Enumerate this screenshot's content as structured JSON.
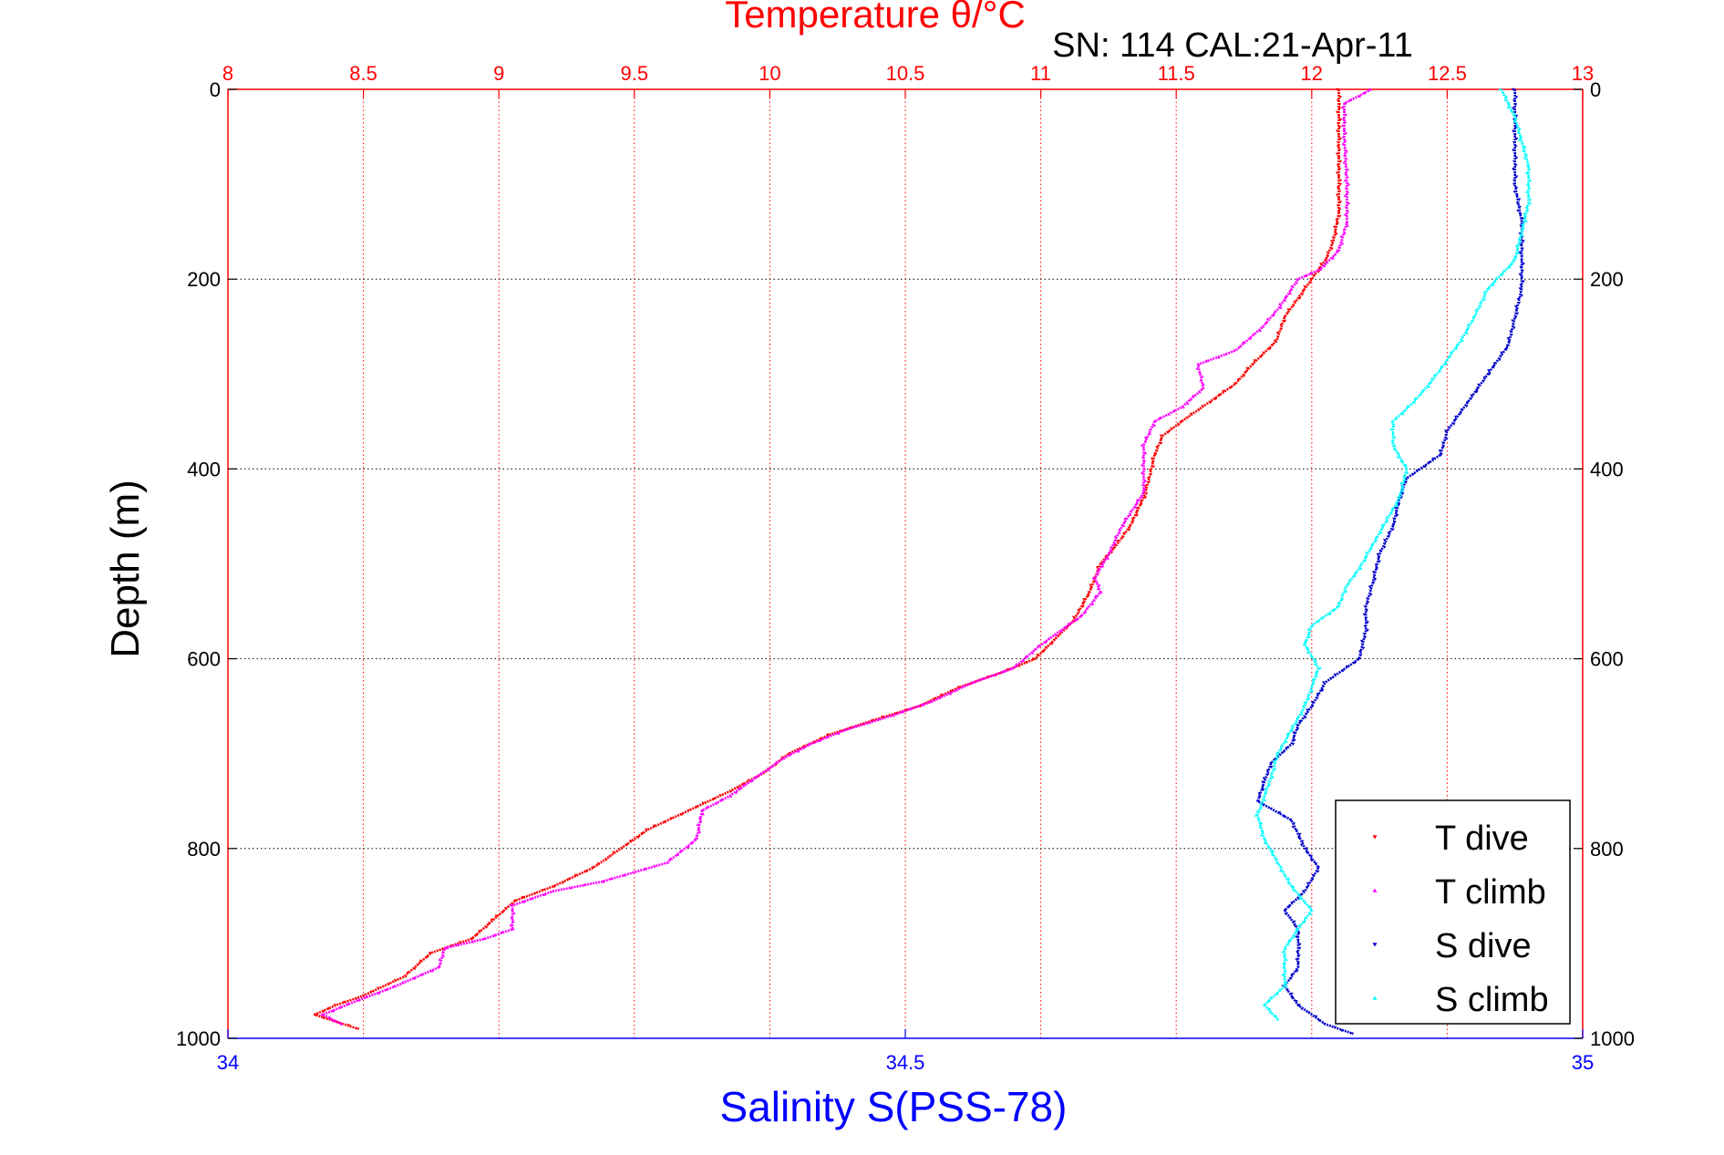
{
  "chart_data": {
    "type": "scatter",
    "title": "Temperature θ/°C",
    "subtitle": "SN: 114  CAL:21-Apr-11",
    "ylabel": "Depth (m)",
    "xlabel": "Salinity S(PSS-78)",
    "ylim": [
      0,
      1000
    ],
    "y_reversed": true,
    "x_temperature_lim": [
      8,
      13
    ],
    "x_salinity_lim": [
      34,
      35
    ],
    "temperature_ticks": [
      "8",
      "8.5",
      "9",
      "9.5",
      "10",
      "10.5",
      "11",
      "11.5",
      "12",
      "12.5",
      "13"
    ],
    "salinity_ticks": [
      "34",
      "34.5",
      "35"
    ],
    "depth_ticks": [
      "0",
      "200",
      "400",
      "600",
      "800",
      "1000"
    ],
    "grid": true,
    "legend_position": "bottom-right",
    "colors": {
      "temperature_axis": "#ff0000",
      "salinity_axis": "#0000ff",
      "grid_depth": "#000000",
      "grid_temperature": "#ff0000"
    },
    "series": [
      {
        "name": "T dive",
        "color": "#ff0000",
        "axis": "temperature",
        "marker": "down-triangle",
        "points": [
          [
            12.1,
            0
          ],
          [
            12.1,
            20
          ],
          [
            12.1,
            60
          ],
          [
            12.1,
            100
          ],
          [
            12.1,
            130
          ],
          [
            12.08,
            160
          ],
          [
            12.05,
            180
          ],
          [
            12.0,
            200
          ],
          [
            11.95,
            220
          ],
          [
            11.9,
            240
          ],
          [
            11.87,
            265
          ],
          [
            11.78,
            290
          ],
          [
            11.72,
            310
          ],
          [
            11.62,
            330
          ],
          [
            11.52,
            350
          ],
          [
            11.45,
            365
          ],
          [
            11.42,
            385
          ],
          [
            11.4,
            410
          ],
          [
            11.38,
            430
          ],
          [
            11.33,
            460
          ],
          [
            11.28,
            480
          ],
          [
            11.22,
            500
          ],
          [
            11.18,
            530
          ],
          [
            11.12,
            560
          ],
          [
            11.05,
            580
          ],
          [
            10.98,
            600
          ],
          [
            10.85,
            615
          ],
          [
            10.7,
            630
          ],
          [
            10.55,
            650
          ],
          [
            10.38,
            665
          ],
          [
            10.22,
            680
          ],
          [
            10.07,
            700
          ],
          [
            9.98,
            720
          ],
          [
            9.85,
            740
          ],
          [
            9.7,
            760
          ],
          [
            9.55,
            780
          ],
          [
            9.45,
            800
          ],
          [
            9.35,
            820
          ],
          [
            9.2,
            840
          ],
          [
            9.06,
            855
          ],
          [
            8.98,
            875
          ],
          [
            8.9,
            895
          ],
          [
            8.75,
            910
          ],
          [
            8.65,
            935
          ],
          [
            8.5,
            955
          ],
          [
            8.4,
            965
          ],
          [
            8.32,
            975
          ],
          [
            8.48,
            990
          ]
        ]
      },
      {
        "name": "T climb",
        "color": "#ff00ff",
        "axis": "temperature",
        "marker": "up-triangle",
        "points": [
          [
            12.22,
            0
          ],
          [
            12.12,
            15
          ],
          [
            12.12,
            50
          ],
          [
            12.13,
            100
          ],
          [
            12.13,
            140
          ],
          [
            12.1,
            170
          ],
          [
            12.03,
            190
          ],
          [
            11.95,
            200
          ],
          [
            11.88,
            230
          ],
          [
            11.82,
            250
          ],
          [
            11.72,
            275
          ],
          [
            11.58,
            290
          ],
          [
            11.6,
            315
          ],
          [
            11.52,
            335
          ],
          [
            11.42,
            350
          ],
          [
            11.38,
            375
          ],
          [
            11.38,
            400
          ],
          [
            11.38,
            425
          ],
          [
            11.3,
            460
          ],
          [
            11.25,
            490
          ],
          [
            11.2,
            515
          ],
          [
            11.22,
            530
          ],
          [
            11.15,
            555
          ],
          [
            11.05,
            575
          ],
          [
            10.98,
            590
          ],
          [
            10.9,
            610
          ],
          [
            10.75,
            625
          ],
          [
            10.6,
            645
          ],
          [
            10.45,
            660
          ],
          [
            10.28,
            675
          ],
          [
            10.15,
            690
          ],
          [
            10.05,
            705
          ],
          [
            9.95,
            725
          ],
          [
            9.85,
            745
          ],
          [
            9.75,
            760
          ],
          [
            9.73,
            790
          ],
          [
            9.62,
            815
          ],
          [
            9.5,
            825
          ],
          [
            9.38,
            835
          ],
          [
            9.2,
            845
          ],
          [
            9.05,
            860
          ],
          [
            9.05,
            885
          ],
          [
            8.95,
            895
          ],
          [
            8.8,
            905
          ],
          [
            8.78,
            925
          ],
          [
            8.62,
            945
          ],
          [
            8.48,
            960
          ],
          [
            8.35,
            975
          ],
          [
            8.42,
            985
          ]
        ]
      },
      {
        "name": "S dive",
        "color": "#0000cc",
        "axis": "salinity",
        "marker": "down-triangle",
        "points": [
          [
            34.95,
            0
          ],
          [
            34.95,
            40
          ],
          [
            34.95,
            100
          ],
          [
            34.955,
            140
          ],
          [
            34.955,
            180
          ],
          [
            34.955,
            210
          ],
          [
            34.95,
            240
          ],
          [
            34.945,
            270
          ],
          [
            34.93,
            300
          ],
          [
            34.915,
            330
          ],
          [
            34.9,
            360
          ],
          [
            34.895,
            385
          ],
          [
            34.87,
            410
          ],
          [
            34.865,
            430
          ],
          [
            34.86,
            460
          ],
          [
            34.85,
            490
          ],
          [
            34.845,
            520
          ],
          [
            34.84,
            545
          ],
          [
            34.84,
            570
          ],
          [
            34.835,
            600
          ],
          [
            34.81,
            625
          ],
          [
            34.8,
            650
          ],
          [
            34.79,
            670
          ],
          [
            34.785,
            690
          ],
          [
            34.77,
            710
          ],
          [
            34.765,
            730
          ],
          [
            34.76,
            750
          ],
          [
            34.785,
            770
          ],
          [
            34.795,
            800
          ],
          [
            34.805,
            820
          ],
          [
            34.795,
            845
          ],
          [
            34.78,
            865
          ],
          [
            34.79,
            885
          ],
          [
            34.79,
            905
          ],
          [
            34.79,
            925
          ],
          [
            34.78,
            945
          ],
          [
            34.79,
            965
          ],
          [
            34.81,
            985
          ],
          [
            34.83,
            995
          ]
        ]
      },
      {
        "name": "S climb",
        "color": "#00ffff",
        "axis": "salinity",
        "marker": "up-triangle",
        "points": [
          [
            34.94,
            0
          ],
          [
            34.95,
            30
          ],
          [
            34.96,
            80
          ],
          [
            34.96,
            120
          ],
          [
            34.955,
            150
          ],
          [
            34.95,
            180
          ],
          [
            34.93,
            210
          ],
          [
            34.92,
            240
          ],
          [
            34.91,
            265
          ],
          [
            34.9,
            285
          ],
          [
            34.89,
            305
          ],
          [
            34.875,
            330
          ],
          [
            34.86,
            350
          ],
          [
            34.86,
            375
          ],
          [
            34.87,
            400
          ],
          [
            34.865,
            430
          ],
          [
            34.855,
            455
          ],
          [
            34.845,
            480
          ],
          [
            34.835,
            505
          ],
          [
            34.825,
            525
          ],
          [
            34.82,
            545
          ],
          [
            34.8,
            565
          ],
          [
            34.795,
            585
          ],
          [
            34.805,
            610
          ],
          [
            34.8,
            630
          ],
          [
            34.795,
            650
          ],
          [
            34.785,
            675
          ],
          [
            34.775,
            700
          ],
          [
            34.77,
            725
          ],
          [
            34.765,
            745
          ],
          [
            34.76,
            765
          ],
          [
            34.765,
            790
          ],
          [
            34.775,
            815
          ],
          [
            34.785,
            840
          ],
          [
            34.8,
            865
          ],
          [
            34.79,
            885
          ],
          [
            34.78,
            905
          ],
          [
            34.78,
            925
          ],
          [
            34.78,
            945
          ],
          [
            34.765,
            965
          ],
          [
            34.775,
            980
          ]
        ]
      }
    ]
  }
}
